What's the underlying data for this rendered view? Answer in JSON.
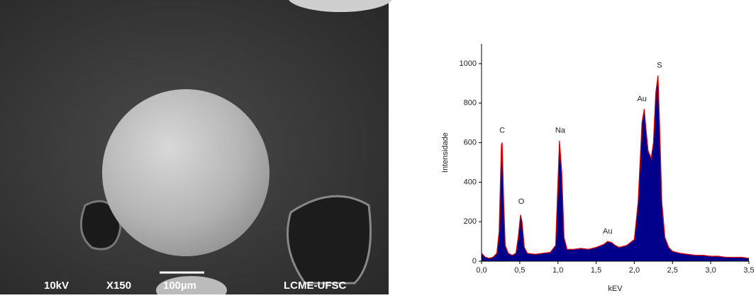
{
  "image": {
    "labels": [
      "10kV",
      "X150",
      "100µm",
      "LCME-UFSC"
    ]
  },
  "chart_data": {
    "type": "area",
    "xlabel": "kEV",
    "ylabel": "Intensidade",
    "xlim": [
      0,
      3.5
    ],
    "ylim": [
      0,
      1100
    ],
    "xticks": [
      {
        "value": 0,
        "label": "0,0"
      },
      {
        "value": 0.5,
        "label": "0,5"
      },
      {
        "value": 1,
        "label": "1,0"
      },
      {
        "value": 1.5,
        "label": "1,5"
      },
      {
        "value": 2,
        "label": "2,0"
      },
      {
        "value": 2.5,
        "label": "2,5"
      },
      {
        "value": 3,
        "label": "3,0"
      },
      {
        "value": 3.5,
        "label": "3,5"
      }
    ],
    "yticks": [
      0,
      200,
      400,
      600,
      800,
      1000
    ],
    "series": [
      {
        "color": "#00008b",
        "line_color": "#e00000",
        "x": [
          0,
          0.05,
          0.1,
          0.15,
          0.2,
          0.23,
          0.26,
          0.27,
          0.29,
          0.31,
          0.35,
          0.4,
          0.45,
          0.48,
          0.51,
          0.53,
          0.56,
          0.6,
          0.7,
          0.8,
          0.9,
          0.97,
          1,
          1.02,
          1.05,
          1.08,
          1.12,
          1.2,
          1.3,
          1.4,
          1.5,
          1.6,
          1.65,
          1.7,
          1.75,
          1.8,
          1.9,
          2,
          2.05,
          2.1,
          2.13,
          2.15,
          2.18,
          2.22,
          2.25,
          2.28,
          2.31,
          2.33,
          2.36,
          2.4,
          2.45,
          2.5,
          2.6,
          2.7,
          2.8,
          2.9,
          3,
          3.1,
          3.2,
          3.3,
          3.4,
          3.5
        ],
        "values": [
          40,
          20,
          15,
          20,
          40,
          150,
          590,
          600,
          300,
          80,
          40,
          30,
          40,
          120,
          235,
          200,
          70,
          40,
          35,
          40,
          45,
          80,
          400,
          610,
          450,
          120,
          60,
          60,
          65,
          60,
          70,
          85,
          100,
          95,
          80,
          70,
          80,
          110,
          300,
          700,
          770,
          680,
          560,
          520,
          600,
          850,
          940,
          700,
          300,
          120,
          70,
          50,
          40,
          35,
          30,
          30,
          25,
          25,
          20,
          20,
          20,
          15
        ]
      }
    ],
    "annotations": [
      {
        "text": "C",
        "x": 0.27,
        "y": 660
      },
      {
        "text": "O",
        "x": 0.52,
        "y": 300
      },
      {
        "text": "Na",
        "x": 1.03,
        "y": 660
      },
      {
        "text": "Au",
        "x": 1.65,
        "y": 150
      },
      {
        "text": "Au",
        "x": 2.1,
        "y": 820
      },
      {
        "text": "S",
        "x": 2.33,
        "y": 990
      }
    ]
  }
}
